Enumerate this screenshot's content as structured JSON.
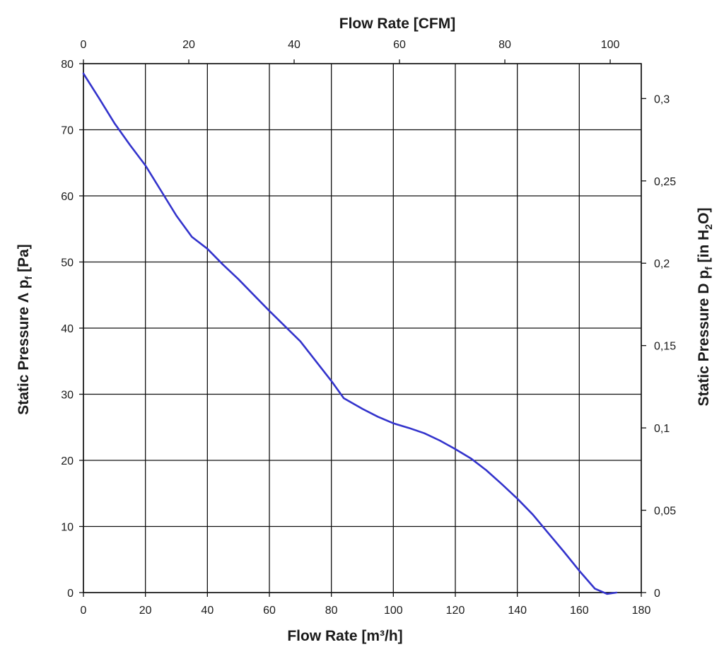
{
  "chart_data": {
    "type": "line",
    "title": "",
    "xlabel_bottom": "Flow Rate [m³/h]",
    "xlabel_top": "Flow Rate [CFM]",
    "ylabel_left": {
      "main": "Static Pressure Λ p",
      "sub": "f",
      "unit": " [Pa]"
    },
    "ylabel_right": {
      "main": "Static Pressure D p",
      "sub": "f",
      "mid": " [in H",
      "sub2": "2",
      "end": "O]"
    },
    "x_bottom": {
      "range": [
        0,
        180
      ],
      "ticks": [
        "0",
        "20",
        "40",
        "60",
        "80",
        "100",
        "120",
        "140",
        "160",
        "180"
      ]
    },
    "x_top": {
      "range": [
        0,
        105.9
      ],
      "ticks": [
        "0",
        "20",
        "40",
        "60",
        "80",
        "100"
      ]
    },
    "y_left": {
      "range": [
        0,
        80
      ],
      "ticks": [
        "0",
        "10",
        "20",
        "30",
        "40",
        "50",
        "60",
        "70",
        "80"
      ]
    },
    "y_right": {
      "range": [
        0,
        0.3212
      ],
      "ticks": [
        "0",
        "0,05",
        "0,1",
        "0,15",
        "0,2",
        "0,25",
        "0,3"
      ]
    },
    "grid": true,
    "line_color": "#3333cc",
    "series": [
      {
        "x": [
          0,
          5,
          10,
          15,
          20,
          25,
          30,
          35,
          40,
          45,
          50,
          55,
          60,
          65,
          70,
          75,
          80,
          84,
          90,
          95,
          100,
          105,
          110,
          115,
          120,
          125,
          130,
          135,
          140,
          145,
          150,
          155,
          160,
          165,
          169,
          172
        ],
        "y": [
          78.5,
          74.8,
          71.0,
          67.7,
          64.6,
          60.8,
          57.0,
          53.8,
          52.0,
          49.6,
          47.4,
          45.0,
          42.6,
          40.3,
          38.0,
          35.0,
          32.0,
          29.4,
          27.8,
          26.6,
          25.6,
          24.9,
          24.1,
          23.0,
          21.7,
          20.3,
          18.5,
          16.4,
          14.2,
          11.8,
          9.0,
          6.2,
          3.3,
          0.6,
          -0.2,
          0
        ]
      }
    ]
  }
}
